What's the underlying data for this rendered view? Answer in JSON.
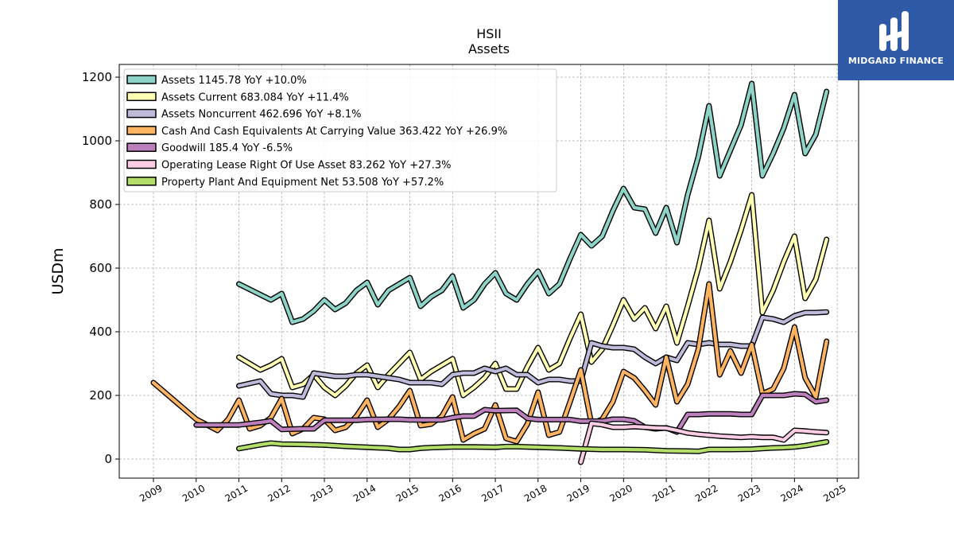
{
  "logo": {
    "text": "MIDGARD FINANCE"
  },
  "chart_data": {
    "type": "line",
    "title": "HSII",
    "subtitle": "Assets",
    "xlabel": "",
    "ylabel": "USDm",
    "xlim": [
      2008.2,
      2025.5
    ],
    "ylim": [
      -60,
      1240
    ],
    "yticks": [
      0,
      200,
      400,
      600,
      800,
      1000,
      1200
    ],
    "xticks": [
      2009,
      2010,
      2011,
      2012,
      2013,
      2014,
      2015,
      2016,
      2017,
      2018,
      2019,
      2020,
      2021,
      2022,
      2023,
      2024,
      2025
    ],
    "grid": true,
    "legend_position": "top-left",
    "series": [
      {
        "name": "Assets  1145.78 YoY +10.0%",
        "color": "#8dd3c7",
        "x": [
          2011.0,
          2011.75,
          2012.0,
          2012.25,
          2012.5,
          2012.75,
          2013.0,
          2013.25,
          2013.5,
          2013.75,
          2014.0,
          2014.25,
          2014.5,
          2014.75,
          2015.0,
          2015.25,
          2015.5,
          2015.75,
          2016.0,
          2016.25,
          2016.5,
          2016.75,
          2017.0,
          2017.25,
          2017.5,
          2017.75,
          2018.0,
          2018.25,
          2018.5,
          2018.75,
          2019.0,
          2019.25,
          2019.5,
          2019.75,
          2020.0,
          2020.25,
          2020.5,
          2020.75,
          2021.0,
          2021.25,
          2021.5,
          2021.75,
          2022.0,
          2022.25,
          2022.5,
          2022.75,
          2023.0,
          2023.25,
          2023.5,
          2023.75,
          2024.0,
          2024.25,
          2024.5,
          2024.75
        ],
        "y": [
          550,
          500,
          520,
          430,
          440,
          465,
          500,
          470,
          490,
          530,
          555,
          485,
          530,
          550,
          570,
          480,
          510,
          530,
          575,
          475,
          500,
          550,
          585,
          520,
          500,
          550,
          590,
          520,
          550,
          630,
          705,
          670,
          700,
          780,
          850,
          790,
          785,
          710,
          790,
          680,
          830,
          950,
          1110,
          890,
          970,
          1050,
          1180,
          890,
          960,
          1040,
          1145,
          960,
          1020,
          1155
        ]
      },
      {
        "name": "Assets Current  683.084 YoY +11.4%",
        "color": "#ffffb3",
        "x": [
          2011.0,
          2011.5,
          2011.75,
          2012.0,
          2012.25,
          2012.5,
          2012.75,
          2013.0,
          2013.25,
          2013.5,
          2013.75,
          2014.0,
          2014.25,
          2014.5,
          2014.75,
          2015.0,
          2015.25,
          2015.5,
          2015.75,
          2016.0,
          2016.25,
          2016.5,
          2016.75,
          2017.0,
          2017.25,
          2017.5,
          2017.75,
          2018.0,
          2018.25,
          2018.5,
          2018.75,
          2019.0,
          2019.25,
          2019.5,
          2019.75,
          2020.0,
          2020.25,
          2020.5,
          2020.75,
          2021.0,
          2021.25,
          2021.5,
          2021.75,
          2022.0,
          2022.25,
          2022.5,
          2022.75,
          2023.0,
          2023.25,
          2023.5,
          2023.75,
          2024.0,
          2024.25,
          2024.5,
          2024.75
        ],
        "y": [
          320,
          280,
          295,
          315,
          225,
          235,
          265,
          225,
          200,
          230,
          270,
          295,
          225,
          265,
          300,
          335,
          250,
          275,
          295,
          315,
          200,
          225,
          255,
          300,
          220,
          220,
          290,
          350,
          280,
          300,
          380,
          455,
          305,
          345,
          420,
          500,
          440,
          475,
          410,
          480,
          365,
          480,
          600,
          750,
          535,
          620,
          720,
          830,
          460,
          530,
          620,
          700,
          505,
          565,
          690
        ]
      },
      {
        "name": "Assets Noncurrent  462.696 YoY +8.1%",
        "color": "#bebada",
        "x": [
          2011.0,
          2011.5,
          2011.75,
          2012.0,
          2012.25,
          2012.5,
          2012.75,
          2013.0,
          2013.25,
          2013.5,
          2013.75,
          2014.0,
          2014.25,
          2014.5,
          2014.75,
          2015.0,
          2015.25,
          2015.5,
          2015.75,
          2016.0,
          2016.25,
          2016.5,
          2016.75,
          2017.0,
          2017.25,
          2017.5,
          2017.75,
          2018.0,
          2018.25,
          2018.5,
          2018.75,
          2019.0,
          2019.25,
          2019.5,
          2019.75,
          2020.0,
          2020.25,
          2020.5,
          2020.75,
          2021.0,
          2021.25,
          2021.5,
          2021.75,
          2022.0,
          2022.25,
          2022.5,
          2022.75,
          2023.0,
          2023.25,
          2023.5,
          2023.75,
          2024.0,
          2024.25,
          2024.5,
          2024.75
        ],
        "y": [
          230,
          245,
          205,
          200,
          200,
          195,
          270,
          265,
          260,
          260,
          265,
          265,
          260,
          255,
          250,
          240,
          240,
          240,
          235,
          265,
          270,
          270,
          285,
          275,
          285,
          265,
          265,
          240,
          250,
          250,
          245,
          245,
          365,
          355,
          350,
          350,
          345,
          320,
          300,
          320,
          310,
          365,
          360,
          365,
          360,
          360,
          355,
          355,
          445,
          440,
          430,
          450,
          460,
          460,
          462
        ]
      },
      {
        "name": "Cash And Cash Equivalents At Carrying Value  363.422 YoY +26.9%",
        "color": "#fdb462",
        "x": [
          2009.0,
          2010.0,
          2010.5,
          2010.75,
          2011.0,
          2011.25,
          2011.5,
          2011.75,
          2012.0,
          2012.25,
          2012.5,
          2012.75,
          2013.0,
          2013.25,
          2013.5,
          2013.75,
          2014.0,
          2014.25,
          2014.5,
          2014.75,
          2015.0,
          2015.25,
          2015.5,
          2015.75,
          2016.0,
          2016.25,
          2016.5,
          2016.75,
          2017.0,
          2017.25,
          2017.5,
          2017.75,
          2018.0,
          2018.25,
          2018.5,
          2018.75,
          2019.0,
          2019.25,
          2019.5,
          2019.75,
          2020.0,
          2020.25,
          2020.5,
          2020.75,
          2021.0,
          2021.25,
          2021.5,
          2021.75,
          2022.0,
          2022.25,
          2022.5,
          2022.75,
          2023.0,
          2023.25,
          2023.5,
          2023.75,
          2024.0,
          2024.25,
          2024.5,
          2024.75
        ],
        "y": [
          240,
          125,
          90,
          125,
          185,
          95,
          105,
          130,
          190,
          80,
          95,
          130,
          125,
          90,
          100,
          135,
          185,
          100,
          125,
          165,
          215,
          105,
          110,
          135,
          195,
          60,
          80,
          95,
          170,
          65,
          55,
          110,
          210,
          75,
          85,
          180,
          280,
          110,
          125,
          180,
          275,
          255,
          215,
          170,
          320,
          180,
          235,
          345,
          550,
          265,
          340,
          270,
          360,
          205,
          220,
          285,
          415,
          255,
          195,
          370
        ]
      },
      {
        "name": "Goodwill  185.4 YoY -6.5%",
        "color": "#bc80bd",
        "x": [
          2010.0,
          2010.5,
          2011.0,
          2011.5,
          2011.75,
          2012.0,
          2012.5,
          2012.75,
          2013.0,
          2013.5,
          2013.75,
          2014.0,
          2014.5,
          2014.75,
          2015.0,
          2015.5,
          2015.75,
          2016.0,
          2016.25,
          2016.5,
          2016.75,
          2017.0,
          2017.5,
          2017.75,
          2018.0,
          2018.5,
          2018.75,
          2019.0,
          2019.5,
          2019.75,
          2020.0,
          2020.25,
          2020.5,
          2020.75,
          2021.0,
          2021.25,
          2021.5,
          2021.75,
          2022.0,
          2022.5,
          2022.75,
          2023.0,
          2023.25,
          2023.5,
          2023.75,
          2024.0,
          2024.25,
          2024.5,
          2024.75
        ],
        "y": [
          107,
          107,
          107,
          115,
          120,
          93,
          95,
          95,
          122,
          122,
          122,
          124,
          125,
          125,
          123,
          123,
          123,
          130,
          135,
          135,
          155,
          152,
          153,
          128,
          124,
          124,
          124,
          119,
          119,
          125,
          125,
          120,
          100,
          95,
          98,
          85,
          140,
          140,
          142,
          142,
          140,
          140,
          200,
          200,
          200,
          205,
          203,
          180,
          185
        ]
      },
      {
        "name": "Operating Lease Right Of Use Asset  83.262 YoY +27.3%",
        "color": "#fccde5",
        "x": [
          2019.0,
          2019.25,
          2019.5,
          2019.75,
          2020.0,
          2020.25,
          2020.5,
          2020.75,
          2021.0,
          2021.25,
          2021.5,
          2021.75,
          2022.0,
          2022.25,
          2022.5,
          2022.75,
          2023.0,
          2023.25,
          2023.5,
          2023.75,
          2024.0,
          2024.25,
          2024.5,
          2024.75
        ],
        "y": [
          -10,
          112,
          108,
          100,
          100,
          102,
          100,
          98,
          97,
          90,
          82,
          78,
          75,
          72,
          70,
          68,
          70,
          68,
          68,
          60,
          90,
          88,
          85,
          83
        ]
      },
      {
        "name": "Property Plant And Equipment Net  53.508 YoY +57.2%",
        "color": "#b3de69",
        "x": [
          2011.0,
          2011.5,
          2011.75,
          2012.0,
          2012.5,
          2013.0,
          2013.5,
          2014.0,
          2014.5,
          2014.75,
          2015.0,
          2015.25,
          2015.5,
          2016.0,
          2016.5,
          2017.0,
          2017.25,
          2017.5,
          2018.0,
          2018.5,
          2019.0,
          2019.5,
          2020.0,
          2020.5,
          2021.0,
          2021.5,
          2021.75,
          2022.0,
          2022.5,
          2023.0,
          2023.25,
          2023.5,
          2023.75,
          2024.0,
          2024.25,
          2024.5,
          2024.75
        ],
        "y": [
          33,
          45,
          50,
          47,
          46,
          44,
          40,
          37,
          34,
          30,
          30,
          34,
          36,
          38,
          38,
          37,
          39,
          39,
          37,
          35,
          32,
          30,
          30,
          29,
          26,
          25,
          24,
          30,
          30,
          31,
          33,
          35,
          36,
          38,
          42,
          48,
          54
        ]
      }
    ]
  }
}
